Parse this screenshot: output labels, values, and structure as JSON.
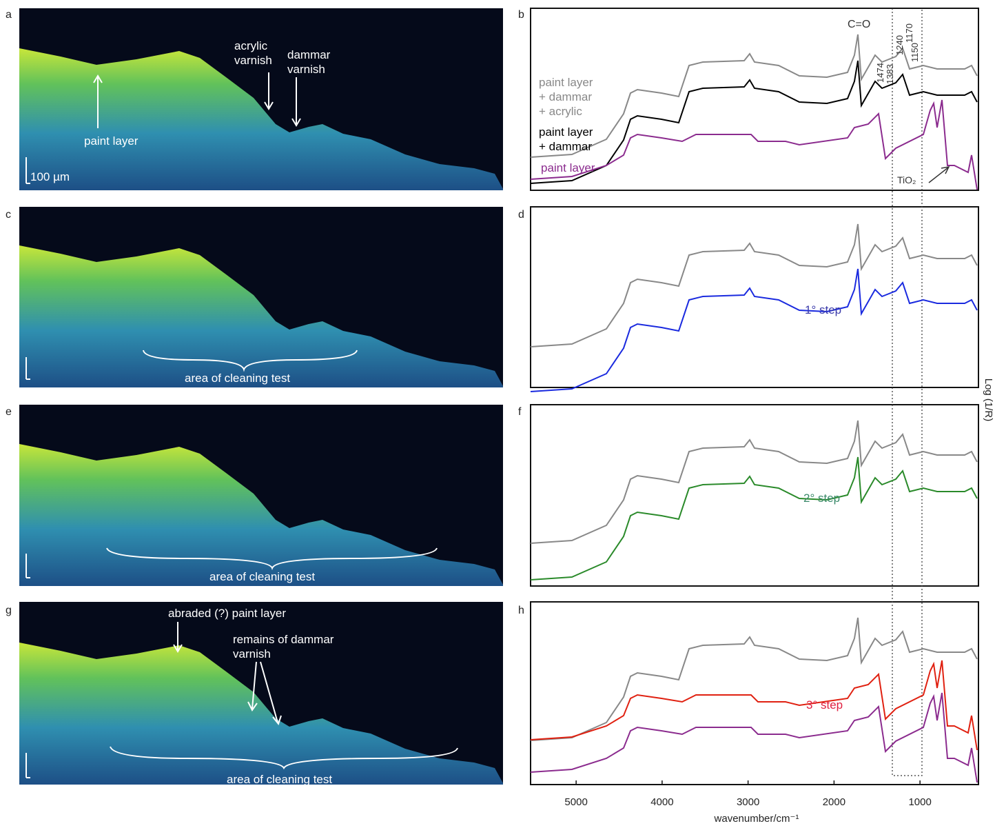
{
  "panels": [
    "a",
    "b",
    "c",
    "d",
    "e",
    "f",
    "g",
    "h"
  ],
  "oct": {
    "scale": "100 µm",
    "paint_layer": "paint layer",
    "acrylic_varnish": [
      "acrylic",
      "varnish"
    ],
    "dammar_varnish": [
      "dammar",
      "varnish"
    ],
    "cleaning_area": [
      "area of cleaning test",
      "area of cleaning test",
      "area of cleaning test"
    ],
    "abraded": "abraded (?) paint layer",
    "remains": [
      "remains of dammar",
      "varnish"
    ]
  },
  "spectra": {
    "legend_b": [
      [
        "paint layer",
        "+ dammar",
        "+ acrylic"
      ],
      [
        "paint layer",
        "+ dammar"
      ],
      "paint layer"
    ],
    "steps": [
      "1° step",
      "2° step",
      "3° step"
    ],
    "peaks": [
      "C=O",
      "1474",
      "1383",
      "1240",
      "1170",
      "1150"
    ],
    "tio2": "TiO₂",
    "x_axis": {
      "label": "wavenumber/cm⁻¹",
      "xlim": [
        5530,
        320
      ],
      "xticks": [
        5000,
        4000,
        3000,
        2000,
        1000
      ]
    },
    "y_axis_label": "Log (1/R)"
  }
}
